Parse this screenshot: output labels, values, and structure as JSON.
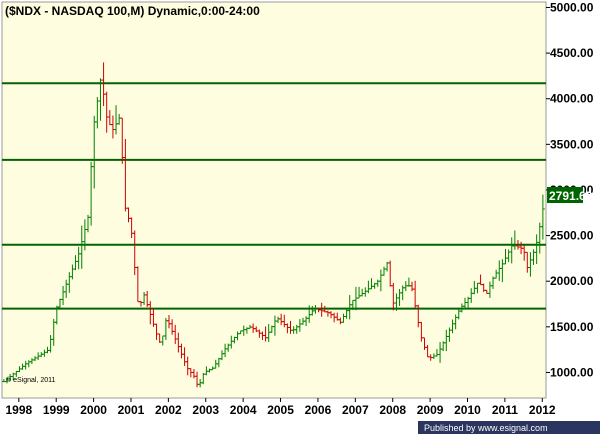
{
  "chart_data": {
    "type": "bar",
    "subtype": "ohlc",
    "title": "($NDX - NASDAQ 100,M) Dynamic,0:00-24:00",
    "copyright": "© eSignal, 2011",
    "footer": "Published by www.esignal.com",
    "last_price": "2791.63",
    "xlabel": "",
    "ylabel": "",
    "x_ticks": [
      "1998",
      "1999",
      "2000",
      "2001",
      "2002",
      "2003",
      "2004",
      "2005",
      "2006",
      "2007",
      "2008",
      "2009",
      "2010",
      "2011",
      "2012"
    ],
    "y_ticks": [
      "1000.00",
      "1500.00",
      "2000.00",
      "2500.00",
      "3000.00",
      "3500.00",
      "4000.00",
      "4500.00",
      "5000.00"
    ],
    "xlim": [
      1997.55,
      2012.1
    ],
    "ylim": [
      720,
      5060
    ],
    "grid": false,
    "horizontal_levels": [
      4170,
      3330,
      2400,
      1700
    ],
    "colors": {
      "background": "#fffde0",
      "up_bar": "#008000",
      "down_bar": "#cc0000",
      "level_line": "#006400",
      "price_tag": "#006400",
      "footer_bar": "#2a3560"
    },
    "anchors": [
      [
        1997.6,
        900
      ],
      [
        1997.9,
        1000
      ],
      [
        1998.2,
        1100
      ],
      [
        1998.6,
        1200
      ],
      [
        1998.8,
        1250
      ],
      [
        1999.0,
        1700
      ],
      [
        1999.3,
        2000
      ],
      [
        1999.6,
        2300
      ],
      [
        1999.85,
        2700
      ],
      [
        2000.0,
        3700
      ],
      [
        2000.2,
        4250
      ],
      [
        2000.35,
        3800
      ],
      [
        2000.5,
        3650
      ],
      [
        2000.7,
        3800
      ],
      [
        2000.85,
        2800
      ],
      [
        2001.0,
        2600
      ],
      [
        2001.2,
        1700
      ],
      [
        2001.35,
        1850
      ],
      [
        2001.7,
        1400
      ],
      [
        2001.8,
        1300
      ],
      [
        2001.95,
        1600
      ],
      [
        2002.2,
        1350
      ],
      [
        2002.5,
        1050
      ],
      [
        2002.7,
        950
      ],
      [
        2002.8,
        830
      ],
      [
        2002.95,
        1000
      ],
      [
        2003.2,
        1050
      ],
      [
        2003.5,
        1250
      ],
      [
        2003.9,
        1450
      ],
      [
        2004.2,
        1500
      ],
      [
        2004.6,
        1380
      ],
      [
        2004.9,
        1600
      ],
      [
        2005.3,
        1450
      ],
      [
        2005.7,
        1600
      ],
      [
        2005.9,
        1700
      ],
      [
        2006.3,
        1650
      ],
      [
        2006.6,
        1550
      ],
      [
        2006.9,
        1780
      ],
      [
        2007.3,
        1900
      ],
      [
        2007.6,
        2000
      ],
      [
        2007.85,
        2200
      ],
      [
        2008.0,
        1750
      ],
      [
        2008.3,
        1950
      ],
      [
        2008.5,
        1950
      ],
      [
        2008.75,
        1400
      ],
      [
        2008.95,
        1150
      ],
      [
        2009.2,
        1200
      ],
      [
        2009.5,
        1450
      ],
      [
        2009.8,
        1700
      ],
      [
        2010.0,
        1800
      ],
      [
        2010.3,
        2000
      ],
      [
        2010.5,
        1850
      ],
      [
        2010.7,
        2050
      ],
      [
        2010.95,
        2200
      ],
      [
        2011.2,
        2400
      ],
      [
        2011.5,
        2350
      ],
      [
        2011.6,
        2150
      ],
      [
        2011.7,
        2250
      ],
      [
        2011.8,
        2350
      ],
      [
        2011.9,
        2500
      ],
      [
        2012.0,
        2791.63
      ]
    ]
  }
}
